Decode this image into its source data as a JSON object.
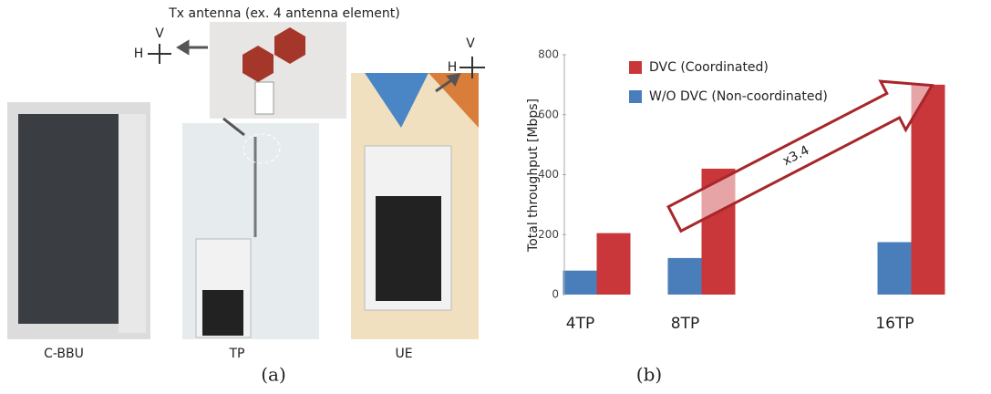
{
  "figure_a": {
    "antenna_label": "Tx antenna (ex. 4 antenna element)",
    "photos": [
      "C-BBU",
      "TP",
      "UE"
    ],
    "polarization_v": "V",
    "polarization_h": "H",
    "caption": "(a)"
  },
  "caption_b": "(b)",
  "chart_data": {
    "type": "bar",
    "y_label": "Total throughput [Mbps]",
    "categories": [
      "4TP",
      "8TP",
      null,
      "16TP"
    ],
    "series": [
      {
        "name": "W/O DVC (Non-coordinated)",
        "color": "#4a7ebb",
        "values": [
          80,
          122,
          null,
          175
        ]
      },
      {
        "name": "DVC (Coordinated)",
        "color": "#c9373a",
        "values": [
          205,
          420,
          null,
          700
        ]
      }
    ],
    "ylim": [
      0,
      800
    ],
    "yticks": [
      0,
      200,
      400,
      600,
      800
    ],
    "annotation": "x3.4"
  }
}
